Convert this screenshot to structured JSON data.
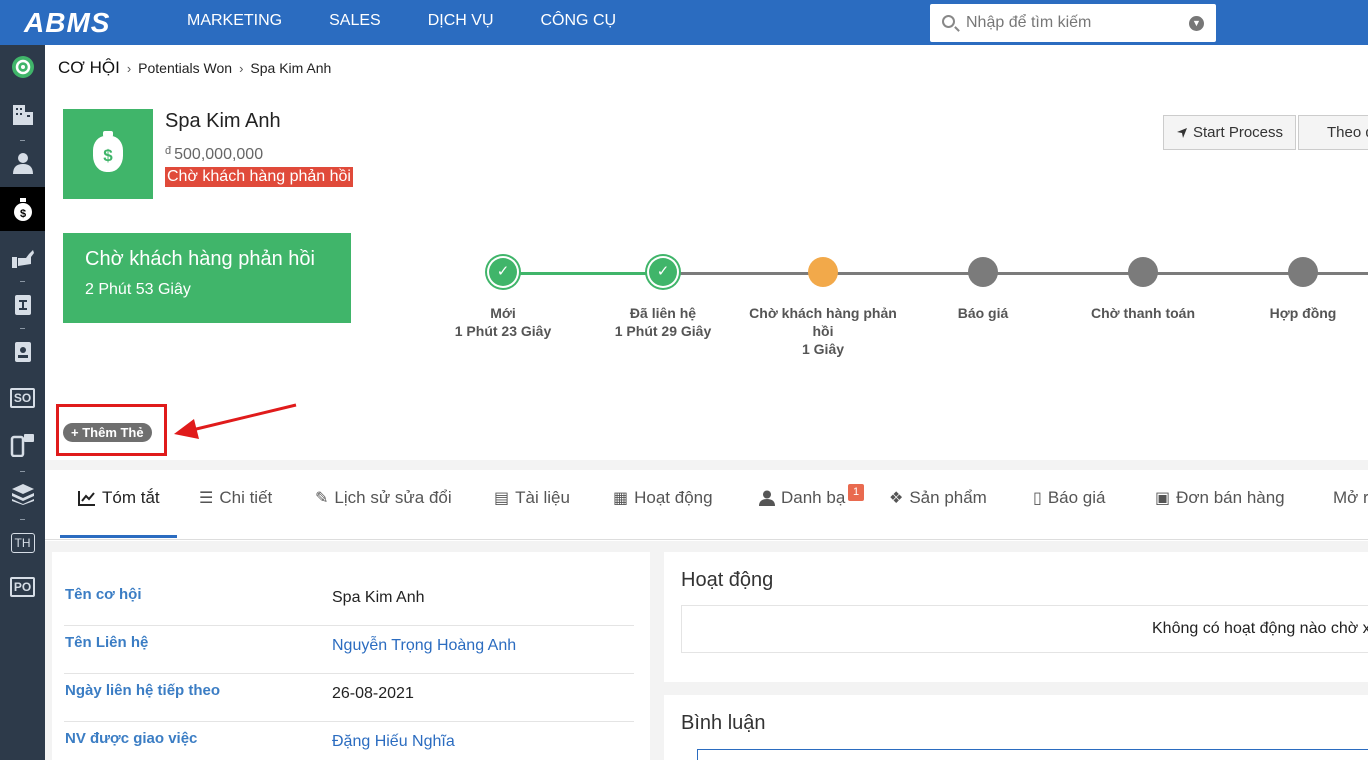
{
  "brand": {
    "logo": "ABMS"
  },
  "topnav": [
    "MARKETING",
    "SALES",
    "DỊCH VỤ",
    "CÔNG CỤ"
  ],
  "search": {
    "placeholder": "Nhập để tìm kiếm"
  },
  "sidebar": {
    "items": [
      {
        "name": "home",
        "icon": "target-icon"
      },
      {
        "name": "organizations",
        "icon": "building-icon"
      },
      {
        "name": "contacts",
        "icon": "person-icon"
      },
      {
        "name": "opportunities",
        "icon": "money-bag-icon"
      },
      {
        "name": "services",
        "icon": "tools-icon"
      },
      {
        "name": "documents",
        "icon": "book-icon"
      },
      {
        "name": "contact-book",
        "icon": "address-book-icon"
      },
      {
        "name": "sales-order",
        "icon": "so-icon",
        "text": "SO"
      },
      {
        "name": "mobile",
        "icon": "mobile-chat-icon"
      },
      {
        "name": "products",
        "icon": "cube-stack-icon"
      },
      {
        "name": "th",
        "icon": "th-icon",
        "text": "TH"
      },
      {
        "name": "purchase-order",
        "icon": "po-icon",
        "text": "PO"
      }
    ]
  },
  "breadcrumb": {
    "root": "CƠ HỘI",
    "level1": "Potentials Won",
    "level2": "Spa Kim Anh"
  },
  "record": {
    "name": "Spa Kim Anh",
    "currency": "đ",
    "amount": "500,000,000",
    "status": "Chờ khách hàng phản hồi"
  },
  "actions": {
    "start_process": "Start Process",
    "follow": "Theo dõi"
  },
  "stage_box": {
    "title": "Chờ khách hàng phản hồi",
    "duration": "2 Phút 53 Giây"
  },
  "stages": [
    {
      "label": "Mới",
      "time": "1 Phút 23 Giây",
      "state": "done"
    },
    {
      "label": "Đã liên hệ",
      "time": "1 Phút 29 Giây",
      "state": "done"
    },
    {
      "label": "Chờ khách hàng phản hồi",
      "time": "1 Giây",
      "state": "current"
    },
    {
      "label": "Báo giá",
      "time": "",
      "state": "todo"
    },
    {
      "label": "Chờ thanh toán",
      "time": "",
      "state": "todo"
    },
    {
      "label": "Hợp đồng",
      "time": "",
      "state": "todo"
    }
  ],
  "colors": {
    "primary": "#2b6cc0",
    "success": "#40b56a",
    "current": "#f2a94a",
    "pending": "#7b7b7b",
    "danger": "#e04a3a",
    "highlight": "#e01b1b"
  },
  "tag_button": "+ Thêm Thẻ",
  "tabs": [
    {
      "label": "Tóm tắt",
      "icon": "line-chart-icon"
    },
    {
      "label": "Chi tiết",
      "icon": "list-icon"
    },
    {
      "label": "Lịch sử sửa đổi",
      "icon": "edit-history-icon"
    },
    {
      "label": "Tài liệu",
      "icon": "document-icon"
    },
    {
      "label": "Hoạt động",
      "icon": "calendar-icon"
    },
    {
      "label": "Danh bạ",
      "icon": "person-icon",
      "badge": "1"
    },
    {
      "label": "Sản phẩm",
      "icon": "dropbox-icon"
    },
    {
      "label": "Báo giá",
      "icon": "quote-icon"
    },
    {
      "label": "Đơn bán hàng",
      "icon": "order-icon"
    },
    {
      "label": "Mở rộng",
      "icon": ""
    }
  ],
  "summary_fields": [
    {
      "label": "Tên cơ hội",
      "value": "Spa Kim Anh",
      "link": false
    },
    {
      "label": "Tên Liên hệ",
      "value": "Nguyễn Trọng Hoàng Anh",
      "link": true
    },
    {
      "label": "Ngày liên hệ tiếp theo",
      "value": "26-08-2021",
      "link": false
    },
    {
      "label": "NV được giao việc",
      "value": "Đặng Hiếu Nghĩa",
      "link": true
    }
  ],
  "activities": {
    "title": "Hoạt động",
    "empty": "Không có hoạt động nào chờ xử lý"
  },
  "comments": {
    "title": "Bình luận"
  }
}
